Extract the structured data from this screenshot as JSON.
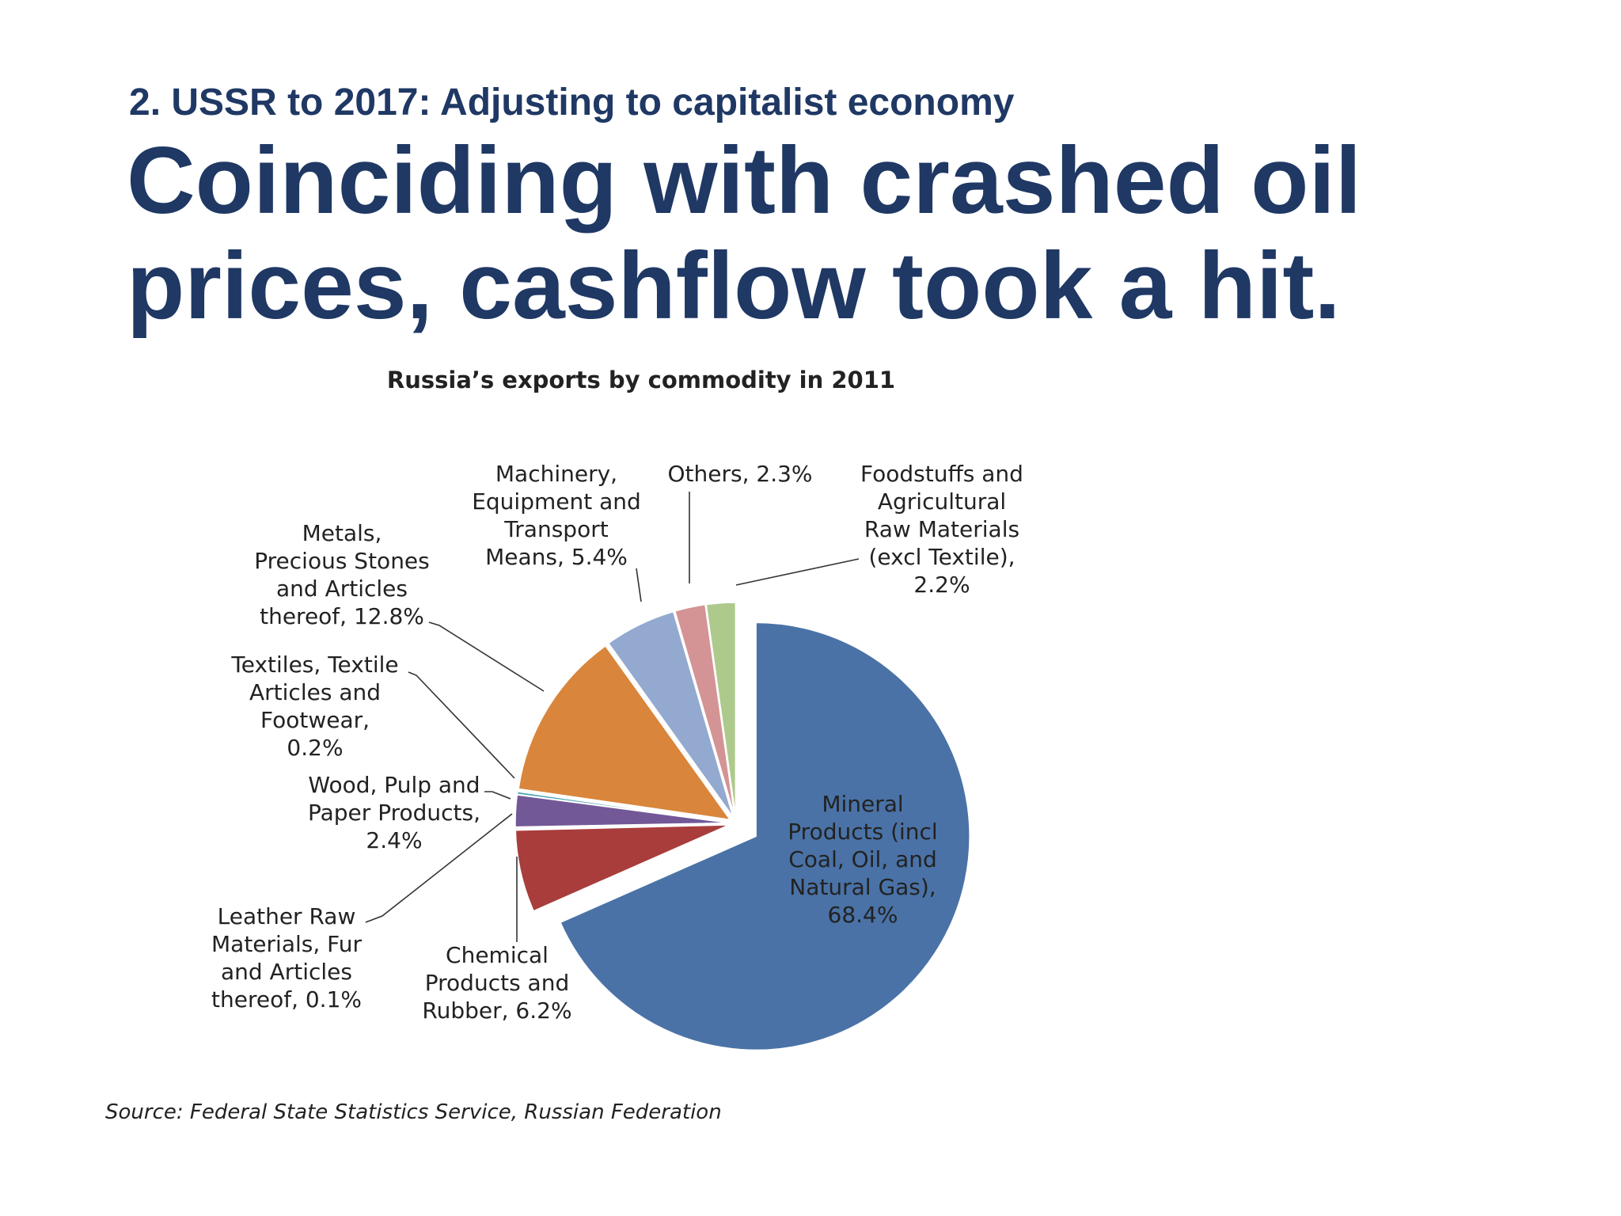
{
  "slide": {
    "section_heading": "2. USSR to 2017: Adjusting to capitalist economy",
    "headline": "Coinciding with crashed oil prices, cashflow took a hit."
  },
  "chart_data": {
    "type": "pie",
    "title": "Russia’s exports by commodity in 2011",
    "source": "Source: Federal State Statistics Service, Russian Federation",
    "unit": "%",
    "slices": [
      {
        "label_lines": [
          "Mineral",
          "Products (incl",
          "Coal, Oil, and",
          "Natural Gas),",
          "68.4%"
        ],
        "value": 68.4,
        "color": "#4a72a6",
        "exploded": true
      },
      {
        "label_lines": [
          "Chemical",
          "Products and",
          "Rubber, 6.2%"
        ],
        "value": 6.2,
        "color": "#a83d3c",
        "exploded": false
      },
      {
        "label_lines": [
          "Leather Raw",
          "Materials, Fur",
          "and Articles",
          "thereof, 0.1%"
        ],
        "value": 0.1,
        "color": "#d8a8a0",
        "exploded": false
      },
      {
        "label_lines": [
          "Wood, Pulp and",
          "Paper Products,",
          "2.4%"
        ],
        "value": 2.4,
        "color": "#725897",
        "exploded": false
      },
      {
        "label_lines": [
          "Textiles, Textile",
          "Articles and",
          "Footwear,",
          "0.2%"
        ],
        "value": 0.2,
        "color": "#4aa3b8",
        "exploded": false
      },
      {
        "label_lines": [
          "Metals,",
          "Precious Stones",
          "and Articles",
          "thereof, 12.8%"
        ],
        "value": 12.8,
        "color": "#d9853b",
        "exploded": false
      },
      {
        "label_lines": [
          "Machinery,",
          "Equipment and",
          "Transport",
          "Means, 5.4%"
        ],
        "value": 5.4,
        "color": "#93a9cf",
        "exploded": false
      },
      {
        "label_lines": [
          "Others, 2.3%"
        ],
        "value": 2.3,
        "color": "#d49394",
        "exploded": false
      },
      {
        "label_lines": [
          "Foodstuffs and",
          "Agricultural",
          "Raw Materials",
          "(excl Textile),",
          "2.2%"
        ],
        "value": 2.2,
        "color": "#aec98c",
        "exploded": false
      }
    ]
  }
}
